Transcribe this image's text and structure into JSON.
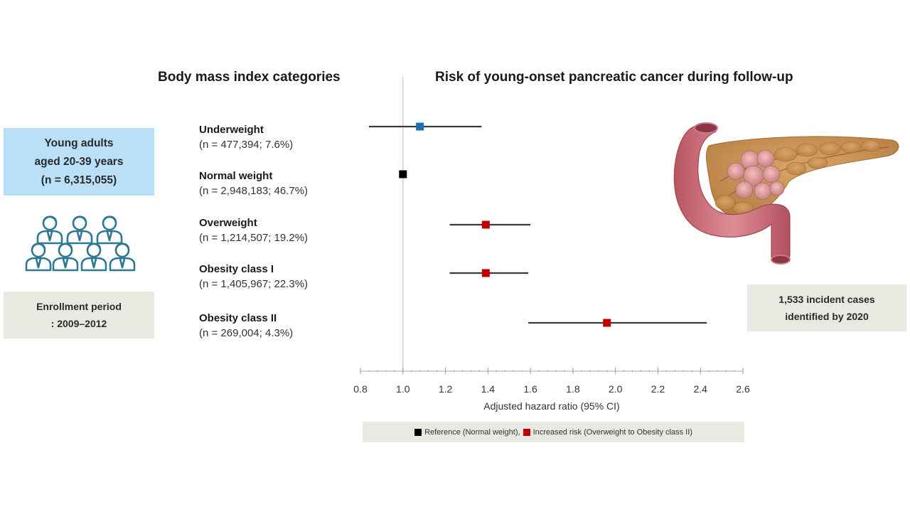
{
  "headings": {
    "left": "Body mass index categories",
    "right": "Risk of young-onset pancreatic cancer during follow-up"
  },
  "population_box": {
    "line1": "Young adults",
    "line2": "aged 20-39 years",
    "line3": "(n = 6,315,055)",
    "color": "#b9e0f7"
  },
  "people_icon": "group-of-people-icon",
  "enrollment_box": {
    "line1": "Enrollment period",
    "line2": ": 2009–2012"
  },
  "cases_box": {
    "line1": "1,533 incident cases",
    "line2": "identified by 2020"
  },
  "organ_illustration": "pancreas-illustration",
  "categories": [
    {
      "name": "Underweight",
      "n": "(n = 477,394; 7.6%)"
    },
    {
      "name": "Normal weight",
      "n": "(n = 2,948,183; 46.7%)"
    },
    {
      "name": "Overweight",
      "n": "(n = 1,214,507; 19.2%)"
    },
    {
      "name": "Obesity class I",
      "n": "(n = 1,405,967; 22.3%)"
    },
    {
      "name": "Obesity class II",
      "n": "(n = 269,004; 4.3%)"
    }
  ],
  "legend": {
    "reference": "Reference (Normal weight),",
    "increased": "Increased risk (Overweight to Obesity class II)"
  },
  "colors": {
    "reference": "#000000",
    "increased": "#c00000",
    "underweight": "#1f6fb5",
    "ci_line": "#3a3a3a"
  },
  "chart_data": {
    "type": "forest",
    "title": "Risk of young-onset pancreatic cancer during follow-up",
    "xlabel": "Adjusted hazard ratio (95% CI)",
    "ylabel": "Body mass index categories",
    "xlim": [
      0.8,
      2.6
    ],
    "xticks": [
      "0.8",
      "1.0",
      "1.2",
      "1.4",
      "1.6",
      "1.8",
      "2.0",
      "2.2",
      "2.4",
      "2.6"
    ],
    "xtick_values": [
      0.8,
      1.0,
      1.2,
      1.4,
      1.6,
      1.8,
      2.0,
      2.2,
      2.4,
      2.6
    ],
    "minor_tick_step": 0.04,
    "reference_line": 1.0,
    "grid": false,
    "legend_position": "bottom",
    "series": [
      {
        "name": "Underweight",
        "hr": 1.08,
        "lower": 0.84,
        "upper": 1.37,
        "group": "underweight"
      },
      {
        "name": "Normal weight",
        "hr": 1.0,
        "lower": null,
        "upper": null,
        "group": "reference"
      },
      {
        "name": "Overweight",
        "hr": 1.39,
        "lower": 1.22,
        "upper": 1.6,
        "group": "increased"
      },
      {
        "name": "Obesity class I",
        "hr": 1.39,
        "lower": 1.22,
        "upper": 1.59,
        "group": "increased"
      },
      {
        "name": "Obesity class II",
        "hr": 1.96,
        "lower": 1.59,
        "upper": 2.43,
        "group": "increased"
      }
    ]
  }
}
